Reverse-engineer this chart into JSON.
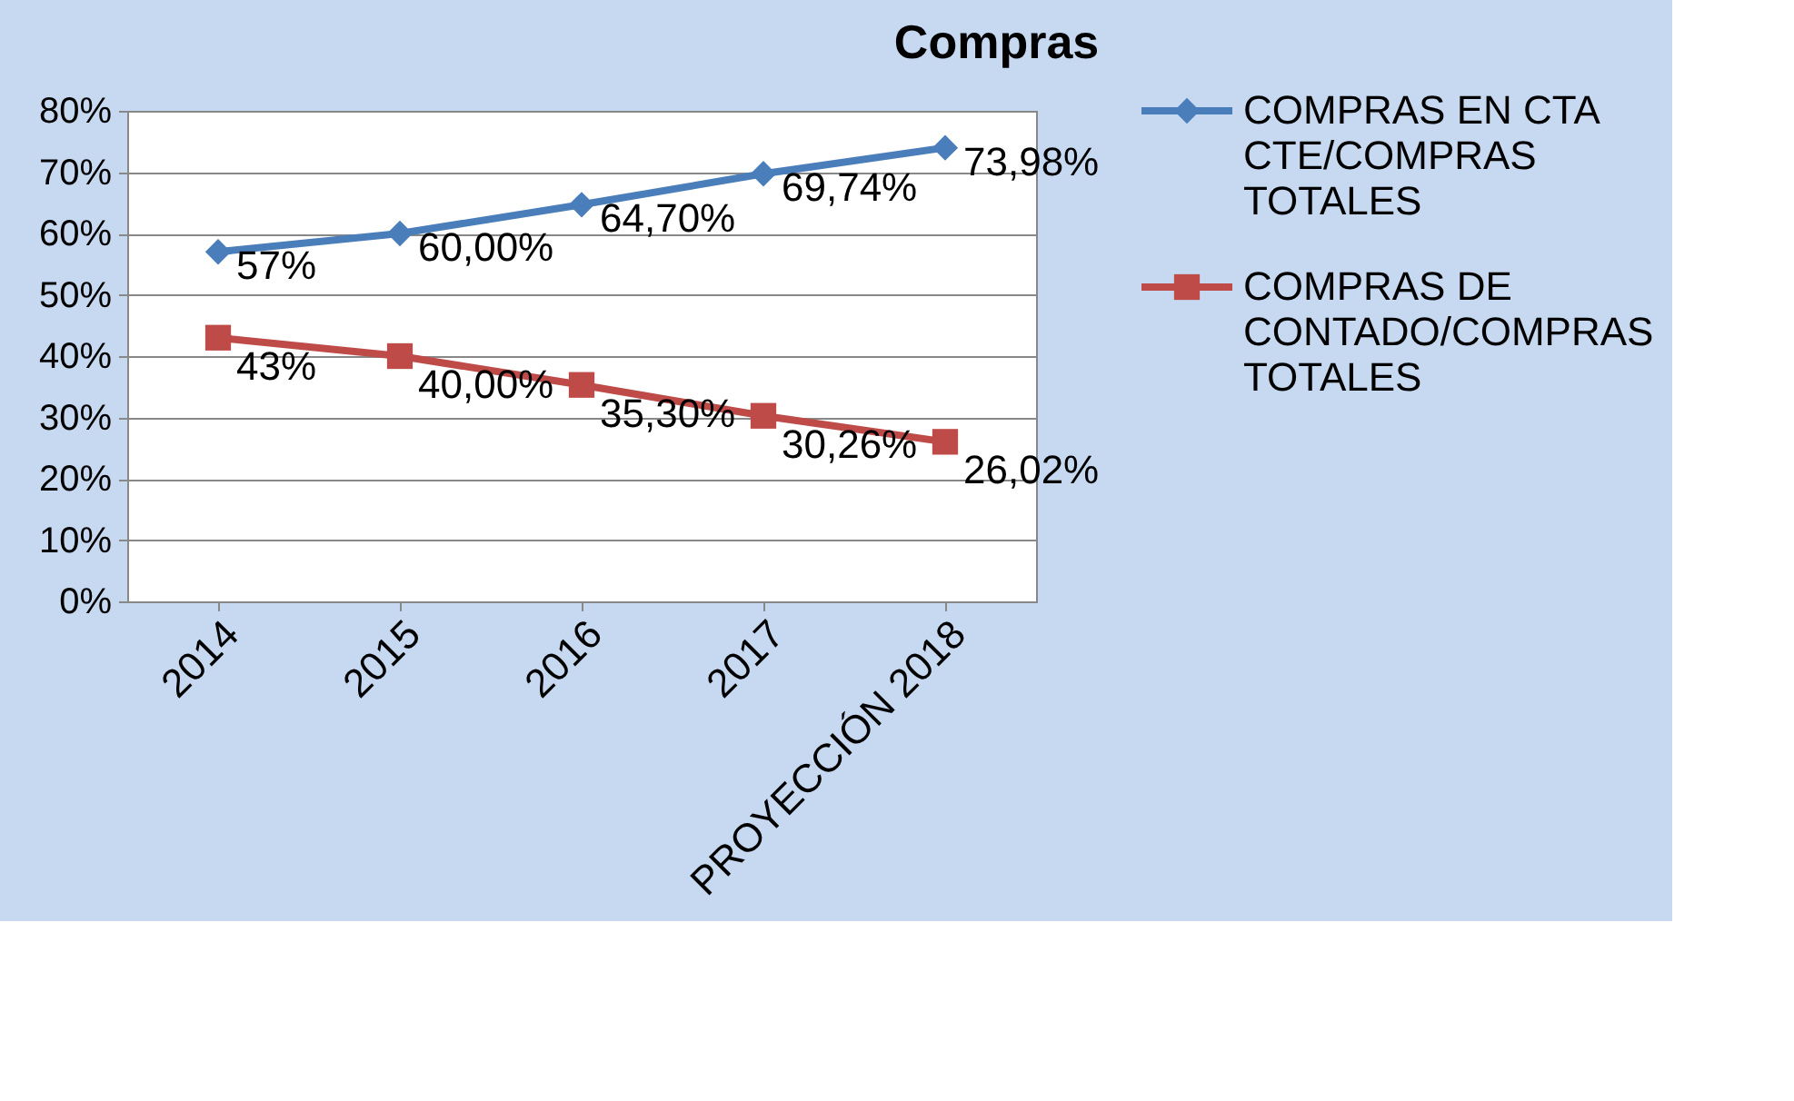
{
  "chart_data": {
    "type": "line",
    "title": "Compras",
    "categories": [
      "2014",
      "2015",
      "2016",
      "2017",
      "PROYECCIÓN 2018"
    ],
    "series": [
      {
        "name": "COMPRAS EN CTA CTE/COMPRAS TOTALES",
        "color": "#4a7ebb",
        "marker": "diamond",
        "values": [
          57,
          60,
          64.7,
          69.74,
          73.98
        ],
        "value_labels": [
          "57%",
          "60,00%",
          "64,70%",
          "69,74%",
          "73,98%"
        ]
      },
      {
        "name": "COMPRAS DE CONTADO/COMPRAS TOTALES",
        "color": "#be4b48",
        "marker": "square",
        "values": [
          43,
          40,
          35.3,
          30.26,
          26.02
        ],
        "value_labels": [
          "43%",
          "40,00%",
          "35,30%",
          "30,26%",
          "26,02%"
        ]
      }
    ],
    "ylim": [
      0,
      80
    ],
    "yticks": [
      {
        "value": 0,
        "label": "0%"
      },
      {
        "value": 10,
        "label": "10%"
      },
      {
        "value": 20,
        "label": "20%"
      },
      {
        "value": 30,
        "label": "30%"
      },
      {
        "value": 40,
        "label": "40%"
      },
      {
        "value": 50,
        "label": "50%"
      },
      {
        "value": 60,
        "label": "60%"
      },
      {
        "value": 70,
        "label": "70%"
      },
      {
        "value": 80,
        "label": "80%"
      }
    ],
    "grid": "y",
    "legend": "right",
    "line_style": "solid"
  }
}
